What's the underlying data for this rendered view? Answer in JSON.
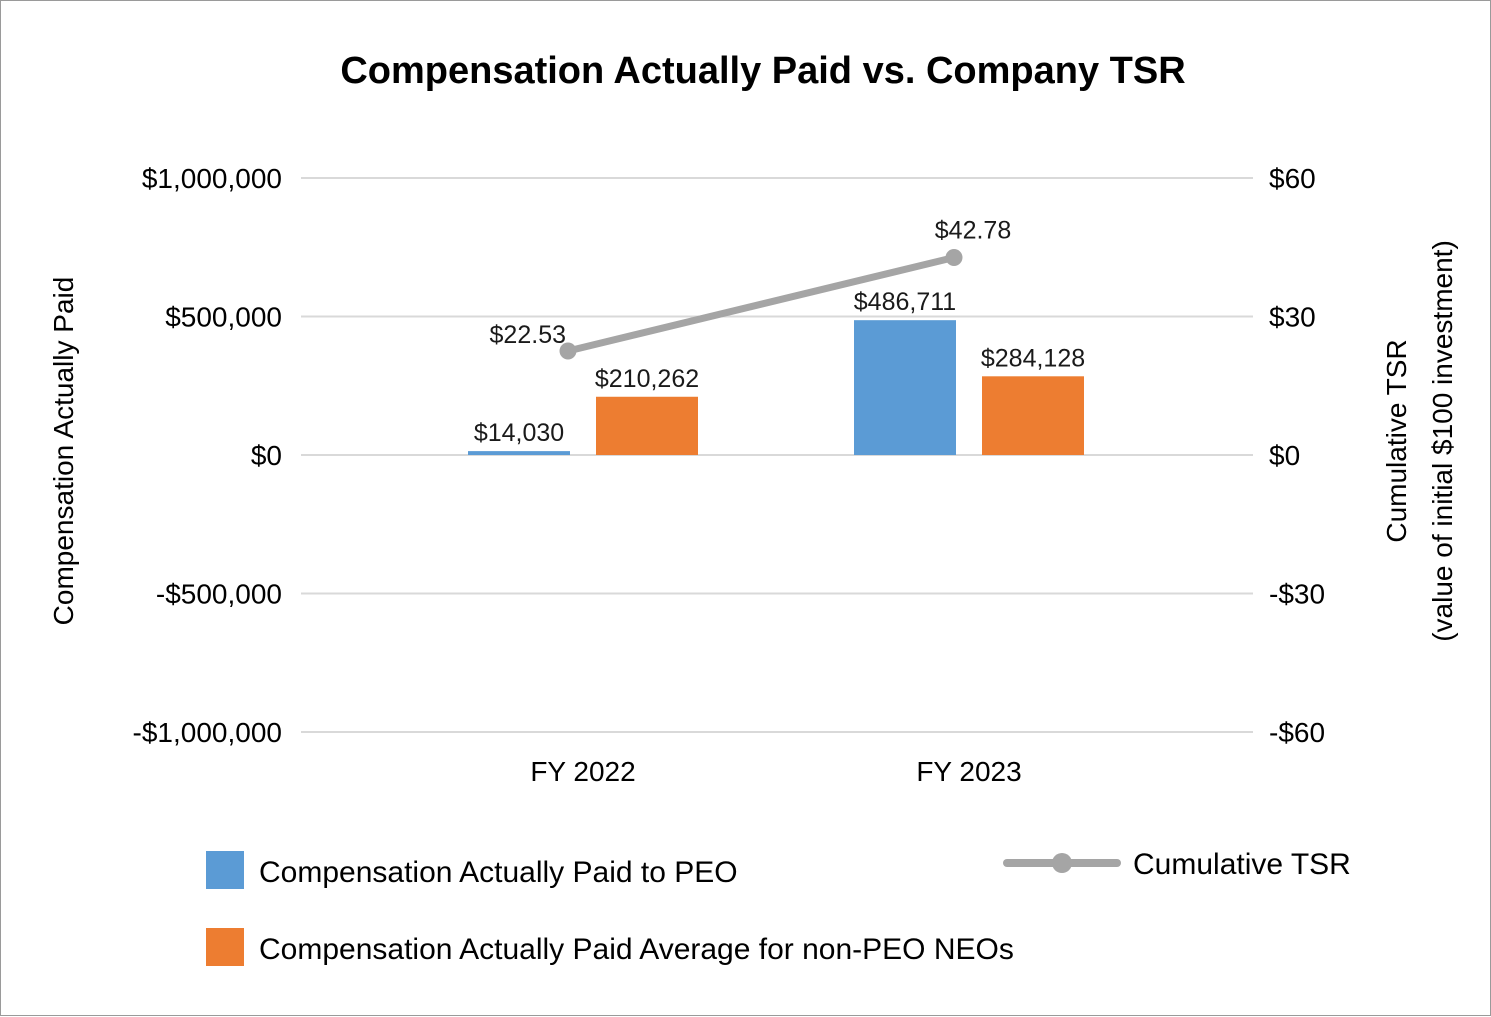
{
  "chart_data": {
    "type": "bar",
    "title": "Compensation Actually Paid vs. Company TSR",
    "categories": [
      "FY 2022",
      "FY 2023"
    ],
    "y_left": {
      "label": "Compensation Actually Paid",
      "range": [
        -1000000,
        1000000
      ],
      "ticks": [
        1000000,
        500000,
        0,
        -500000,
        -1000000
      ],
      "tick_labels": [
        "$1,000,000",
        "$500,000",
        "$0",
        "-$500,000",
        "-$1,000,000"
      ]
    },
    "y_right": {
      "label_line1": "Cumulative TSR",
      "label_line2": "(value of initial $100 investment)",
      "range": [
        -60,
        60
      ],
      "ticks": [
        60,
        30,
        0,
        -30,
        -60
      ],
      "tick_labels": [
        "$60",
        "$30",
        "$0",
        "-$30",
        "-$60"
      ]
    },
    "series": [
      {
        "name": "Compensation Actually Paid to PEO",
        "type": "bar",
        "axis": "left",
        "color": "#5b9bd5",
        "values": [
          14030,
          486711
        ],
        "labels": [
          "$14,030",
          "$486,711"
        ]
      },
      {
        "name": "Compensation Actually Paid Average for non-PEO NEOs",
        "type": "bar",
        "axis": "left",
        "color": "#ed7d31",
        "values": [
          210262,
          284128
        ],
        "labels": [
          "$210,262",
          "$284,128"
        ]
      },
      {
        "name": "Cumulative TSR",
        "type": "line",
        "axis": "right",
        "color": "#a5a5a5",
        "values": [
          22.53,
          42.78
        ],
        "labels": [
          "$22.53",
          "$42.78"
        ]
      }
    ],
    "grid": true,
    "legend_position": "bottom"
  }
}
